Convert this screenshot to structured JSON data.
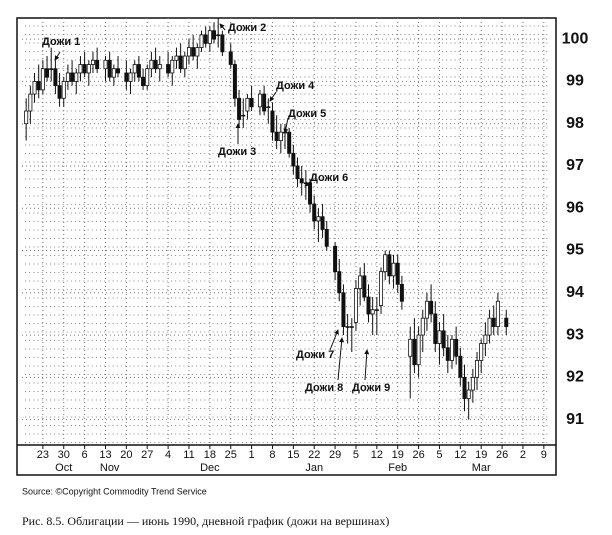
{
  "chart_data": {
    "type": "candlestick",
    "xlim": [
      -1,
      125
    ],
    "ylim": [
      90.4,
      100.5
    ],
    "yticks": [
      91,
      92,
      93,
      94,
      95,
      96,
      97,
      98,
      99,
      100
    ],
    "xticks": [
      {
        "value": 4,
        "label": "23"
      },
      {
        "value": 9,
        "label": "30"
      },
      {
        "value": 14,
        "label": "6"
      },
      {
        "value": 19,
        "label": "13"
      },
      {
        "value": 24,
        "label": "20"
      },
      {
        "value": 29,
        "label": "27"
      },
      {
        "value": 34,
        "label": "4"
      },
      {
        "value": 39,
        "label": "11"
      },
      {
        "value": 44,
        "label": "18"
      },
      {
        "value": 49,
        "label": "25"
      },
      {
        "value": 54,
        "label": "1"
      },
      {
        "value": 59,
        "label": "8"
      },
      {
        "value": 64,
        "label": "15"
      },
      {
        "value": 69,
        "label": "22"
      },
      {
        "value": 74,
        "label": "29"
      },
      {
        "value": 79,
        "label": "5"
      },
      {
        "value": 84,
        "label": "12"
      },
      {
        "value": 89,
        "label": "19"
      },
      {
        "value": 94,
        "label": "26"
      },
      {
        "value": 99,
        "label": "5"
      },
      {
        "value": 104,
        "label": "12"
      },
      {
        "value": 109,
        "label": "19"
      },
      {
        "value": 114,
        "label": "26"
      },
      {
        "value": 119,
        "label": "2"
      },
      {
        "value": 124,
        "label": "9"
      }
    ],
    "months": [
      {
        "value": 9,
        "label": "Oct"
      },
      {
        "value": 20,
        "label": "Nov"
      },
      {
        "value": 44,
        "label": "Dec"
      },
      {
        "value": 69,
        "label": "Jan"
      },
      {
        "value": 89,
        "label": "Feb"
      },
      {
        "value": 109,
        "label": "Mar"
      }
    ],
    "grid": true,
    "ohlc": [
      [
        0,
        98.0,
        98.6,
        97.6,
        98.3
      ],
      [
        1,
        98.3,
        98.9,
        98.0,
        98.7
      ],
      [
        2,
        98.7,
        99.2,
        98.5,
        99.0
      ],
      [
        3,
        99.0,
        99.4,
        98.6,
        98.8
      ],
      [
        4,
        98.8,
        99.5,
        98.7,
        99.3
      ],
      [
        5,
        99.3,
        99.6,
        99.0,
        99.1
      ],
      [
        6,
        99.3,
        99.8,
        99.0,
        99.3
      ],
      [
        7,
        99.3,
        99.5,
        98.7,
        98.9
      ],
      [
        8,
        98.9,
        99.2,
        98.4,
        98.6
      ],
      [
        9,
        98.6,
        99.1,
        98.4,
        99.0
      ],
      [
        10,
        99.0,
        99.4,
        98.8,
        99.2
      ],
      [
        11,
        99.2,
        99.5,
        98.9,
        99.0
      ],
      [
        12,
        99.0,
        99.3,
        98.7,
        99.2
      ],
      [
        13,
        99.2,
        99.6,
        99.0,
        99.4
      ],
      [
        14,
        99.4,
        99.7,
        99.1,
        99.2
      ],
      [
        15,
        99.2,
        99.5,
        98.9,
        99.4
      ],
      [
        16,
        99.4,
        99.7,
        99.2,
        99.5
      ],
      [
        17,
        99.5,
        99.8,
        99.2,
        99.3
      ],
      [
        19,
        99.3,
        99.6,
        99.0,
        99.5
      ],
      [
        20,
        99.5,
        99.7,
        99.0,
        99.1
      ],
      [
        21,
        99.1,
        99.4,
        98.9,
        99.3
      ],
      [
        22,
        99.3,
        99.6,
        99.1,
        99.2
      ],
      [
        24,
        99.2,
        99.5,
        98.8,
        99.0
      ],
      [
        25,
        99.0,
        99.3,
        98.7,
        99.2
      ],
      [
        26,
        99.2,
        99.5,
        99.0,
        99.4
      ],
      [
        27,
        99.4,
        99.6,
        99.0,
        99.1
      ],
      [
        28,
        99.1,
        99.3,
        98.8,
        98.9
      ],
      [
        29,
        98.9,
        99.4,
        98.8,
        99.3
      ],
      [
        30,
        99.3,
        99.7,
        99.1,
        99.5
      ],
      [
        31,
        99.5,
        99.8,
        99.2,
        99.3
      ],
      [
        32,
        99.3,
        99.6,
        99.0,
        99.4
      ],
      [
        34,
        99.4,
        99.7,
        99.1,
        99.2
      ],
      [
        35,
        99.2,
        99.6,
        98.9,
        99.5
      ],
      [
        36,
        99.5,
        99.8,
        99.3,
        99.6
      ],
      [
        37,
        99.6,
        99.9,
        99.2,
        99.3
      ],
      [
        38,
        99.3,
        99.7,
        99.1,
        99.6
      ],
      [
        39,
        99.6,
        100.0,
        99.4,
        99.8
      ],
      [
        40,
        99.8,
        100.1,
        99.5,
        99.6
      ],
      [
        41,
        99.6,
        99.9,
        99.3,
        99.8
      ],
      [
        42,
        99.8,
        100.2,
        99.7,
        100.1
      ],
      [
        43,
        100.1,
        100.3,
        99.8,
        99.9
      ],
      [
        44,
        99.9,
        100.3,
        99.7,
        100.2
      ],
      [
        45,
        100.2,
        100.4,
        99.9,
        100.0
      ],
      [
        46,
        100.1,
        100.5,
        99.8,
        100.1
      ],
      [
        47,
        100.1,
        100.2,
        99.6,
        99.7
      ],
      [
        49,
        99.7,
        99.9,
        99.3,
        99.4
      ],
      [
        50,
        99.4,
        99.5,
        98.4,
        98.6
      ],
      [
        51,
        98.6,
        98.8,
        97.9,
        98.1
      ],
      [
        52,
        98.2,
        98.6,
        97.9,
        98.2
      ],
      [
        53,
        98.3,
        98.7,
        98.1,
        98.6
      ],
      [
        54,
        98.6,
        98.9,
        98.3,
        98.4
      ],
      [
        56,
        98.4,
        98.8,
        98.2,
        98.7
      ],
      [
        57,
        98.7,
        98.9,
        98.2,
        98.3
      ],
      [
        58,
        98.4,
        98.6,
        98.0,
        98.4
      ],
      [
        59,
        98.3,
        98.5,
        97.6,
        97.8
      ],
      [
        60,
        97.8,
        98.2,
        97.4,
        97.6
      ],
      [
        61,
        97.6,
        98.0,
        97.3,
        97.8
      ],
      [
        62,
        97.8,
        98.0,
        97.4,
        97.8
      ],
      [
        63,
        97.8,
        97.9,
        97.2,
        97.3
      ],
      [
        64,
        97.3,
        97.5,
        96.8,
        97.0
      ],
      [
        65,
        97.0,
        97.2,
        96.5,
        96.7
      ],
      [
        66,
        96.7,
        97.0,
        96.3,
        96.6
      ],
      [
        67,
        96.6,
        96.9,
        96.2,
        96.6
      ],
      [
        68,
        96.6,
        96.7,
        95.9,
        96.1
      ],
      [
        69,
        96.1,
        96.3,
        95.5,
        95.7
      ],
      [
        70,
        95.7,
        96.0,
        95.2,
        95.8
      ],
      [
        71,
        95.8,
        96.1,
        95.3,
        95.5
      ],
      [
        72,
        95.5,
        95.7,
        95.0,
        95.1
      ],
      [
        74,
        95.1,
        95.2,
        94.3,
        94.5
      ],
      [
        75,
        94.5,
        94.8,
        93.8,
        94.0
      ],
      [
        76,
        94.0,
        94.2,
        93.0,
        93.2
      ],
      [
        77,
        93.2,
        93.5,
        92.8,
        93.2
      ],
      [
        78,
        93.2,
        93.4,
        92.6,
        93.2
      ],
      [
        79,
        93.3,
        94.3,
        93.1,
        94.1
      ],
      [
        80,
        94.1,
        94.6,
        93.7,
        94.4
      ],
      [
        81,
        94.4,
        94.7,
        93.8,
        93.9
      ],
      [
        82,
        93.9,
        94.2,
        93.3,
        93.5
      ],
      [
        83,
        93.5,
        93.9,
        93.0,
        93.6
      ],
      [
        84,
        93.6,
        93.9,
        93.0,
        93.6
      ],
      [
        85,
        93.7,
        94.6,
        93.5,
        94.5
      ],
      [
        86,
        94.5,
        95.0,
        94.3,
        94.9
      ],
      [
        87,
        94.9,
        95.0,
        94.2,
        94.4
      ],
      [
        88,
        94.4,
        94.9,
        94.1,
        94.7
      ],
      [
        89,
        94.7,
        94.9,
        94.0,
        94.2
      ],
      [
        90,
        94.2,
        94.4,
        93.6,
        93.8
      ],
      [
        92,
        92.5,
        93.2,
        91.5,
        92.9
      ],
      [
        93,
        92.9,
        93.4,
        92.1,
        92.3
      ],
      [
        94,
        92.3,
        93.2,
        92.0,
        93.0
      ],
      [
        95,
        93.0,
        93.6,
        92.6,
        93.4
      ],
      [
        96,
        93.4,
        94.0,
        93.1,
        93.8
      ],
      [
        97,
        93.8,
        94.2,
        93.3,
        93.5
      ],
      [
        98,
        93.5,
        93.8,
        92.6,
        92.8
      ],
      [
        99,
        92.8,
        93.3,
        92.3,
        93.1
      ],
      [
        100,
        93.1,
        93.5,
        92.5,
        92.7
      ],
      [
        101,
        92.7,
        93.0,
        92.1,
        92.4
      ],
      [
        102,
        92.4,
        93.0,
        92.2,
        92.9
      ],
      [
        103,
        92.9,
        93.2,
        92.3,
        92.5
      ],
      [
        104,
        92.5,
        92.7,
        91.8,
        92.0
      ],
      [
        105,
        92.0,
        92.3,
        91.2,
        91.5
      ],
      [
        106,
        91.5,
        91.9,
        91.0,
        91.7
      ],
      [
        107,
        91.7,
        92.2,
        91.4,
        92.0
      ],
      [
        108,
        92.0,
        92.6,
        91.7,
        92.4
      ],
      [
        109,
        92.4,
        92.9,
        92.1,
        92.8
      ],
      [
        110,
        92.8,
        93.3,
        92.5,
        93.0
      ],
      [
        111,
        93.0,
        93.6,
        92.8,
        93.4
      ],
      [
        112,
        93.4,
        93.7,
        93.0,
        93.2
      ],
      [
        113,
        93.2,
        94.0,
        93.0,
        93.8
      ],
      [
        115,
        93.4,
        93.6,
        93.0,
        93.2
      ]
    ],
    "annotations": [
      "Дожи 1",
      "Дожи 2",
      "Дожи 3",
      "Дожи 4",
      "Дожи 5",
      "Дожи 6",
      "Дожи 7",
      "Дожи 8",
      "Дожи 9"
    ],
    "source": "Source: ©Copyright Commodity Trend Service",
    "caption": "Рис. 8.5. Облигации — июнь 1990, дневной график (дожи на вершинах)"
  }
}
